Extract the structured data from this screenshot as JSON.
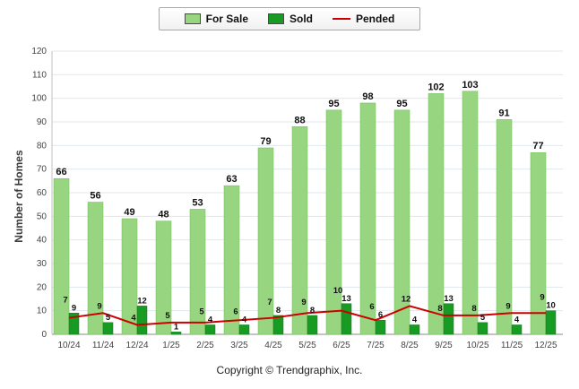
{
  "chart_data": {
    "type": "bar",
    "title": "",
    "categories": [
      "10/24",
      "11/24",
      "12/24",
      "1/25",
      "2/25",
      "3/25",
      "4/25",
      "5/25",
      "6/25",
      "7/25",
      "8/25",
      "9/25",
      "10/25",
      "11/25",
      "12/25"
    ],
    "series": [
      {
        "name": "For Sale",
        "type": "bar",
        "color": "#98d581",
        "values": [
          66,
          56,
          49,
          48,
          53,
          63,
          79,
          88,
          95,
          98,
          95,
          102,
          103,
          91,
          77
        ]
      },
      {
        "name": "Sold",
        "type": "bar",
        "color": "#189b23",
        "values": [
          9,
          5,
          12,
          1,
          4,
          4,
          8,
          8,
          13,
          6,
          4,
          13,
          5,
          4,
          10
        ]
      },
      {
        "name": "Pended",
        "type": "line",
        "color": "#cc0000",
        "values": [
          7,
          9,
          4,
          5,
          5,
          6,
          7,
          9,
          10,
          6,
          12,
          8,
          8,
          9,
          9
        ]
      }
    ],
    "xlabel": "",
    "ylabel": "Number of Homes",
    "ylim": [
      0,
      120
    ],
    "ytick_step": 10,
    "grid": true,
    "legend_position": "top-center"
  },
  "footer": {
    "copyright": "Copyright © Trendgraphix, Inc."
  }
}
